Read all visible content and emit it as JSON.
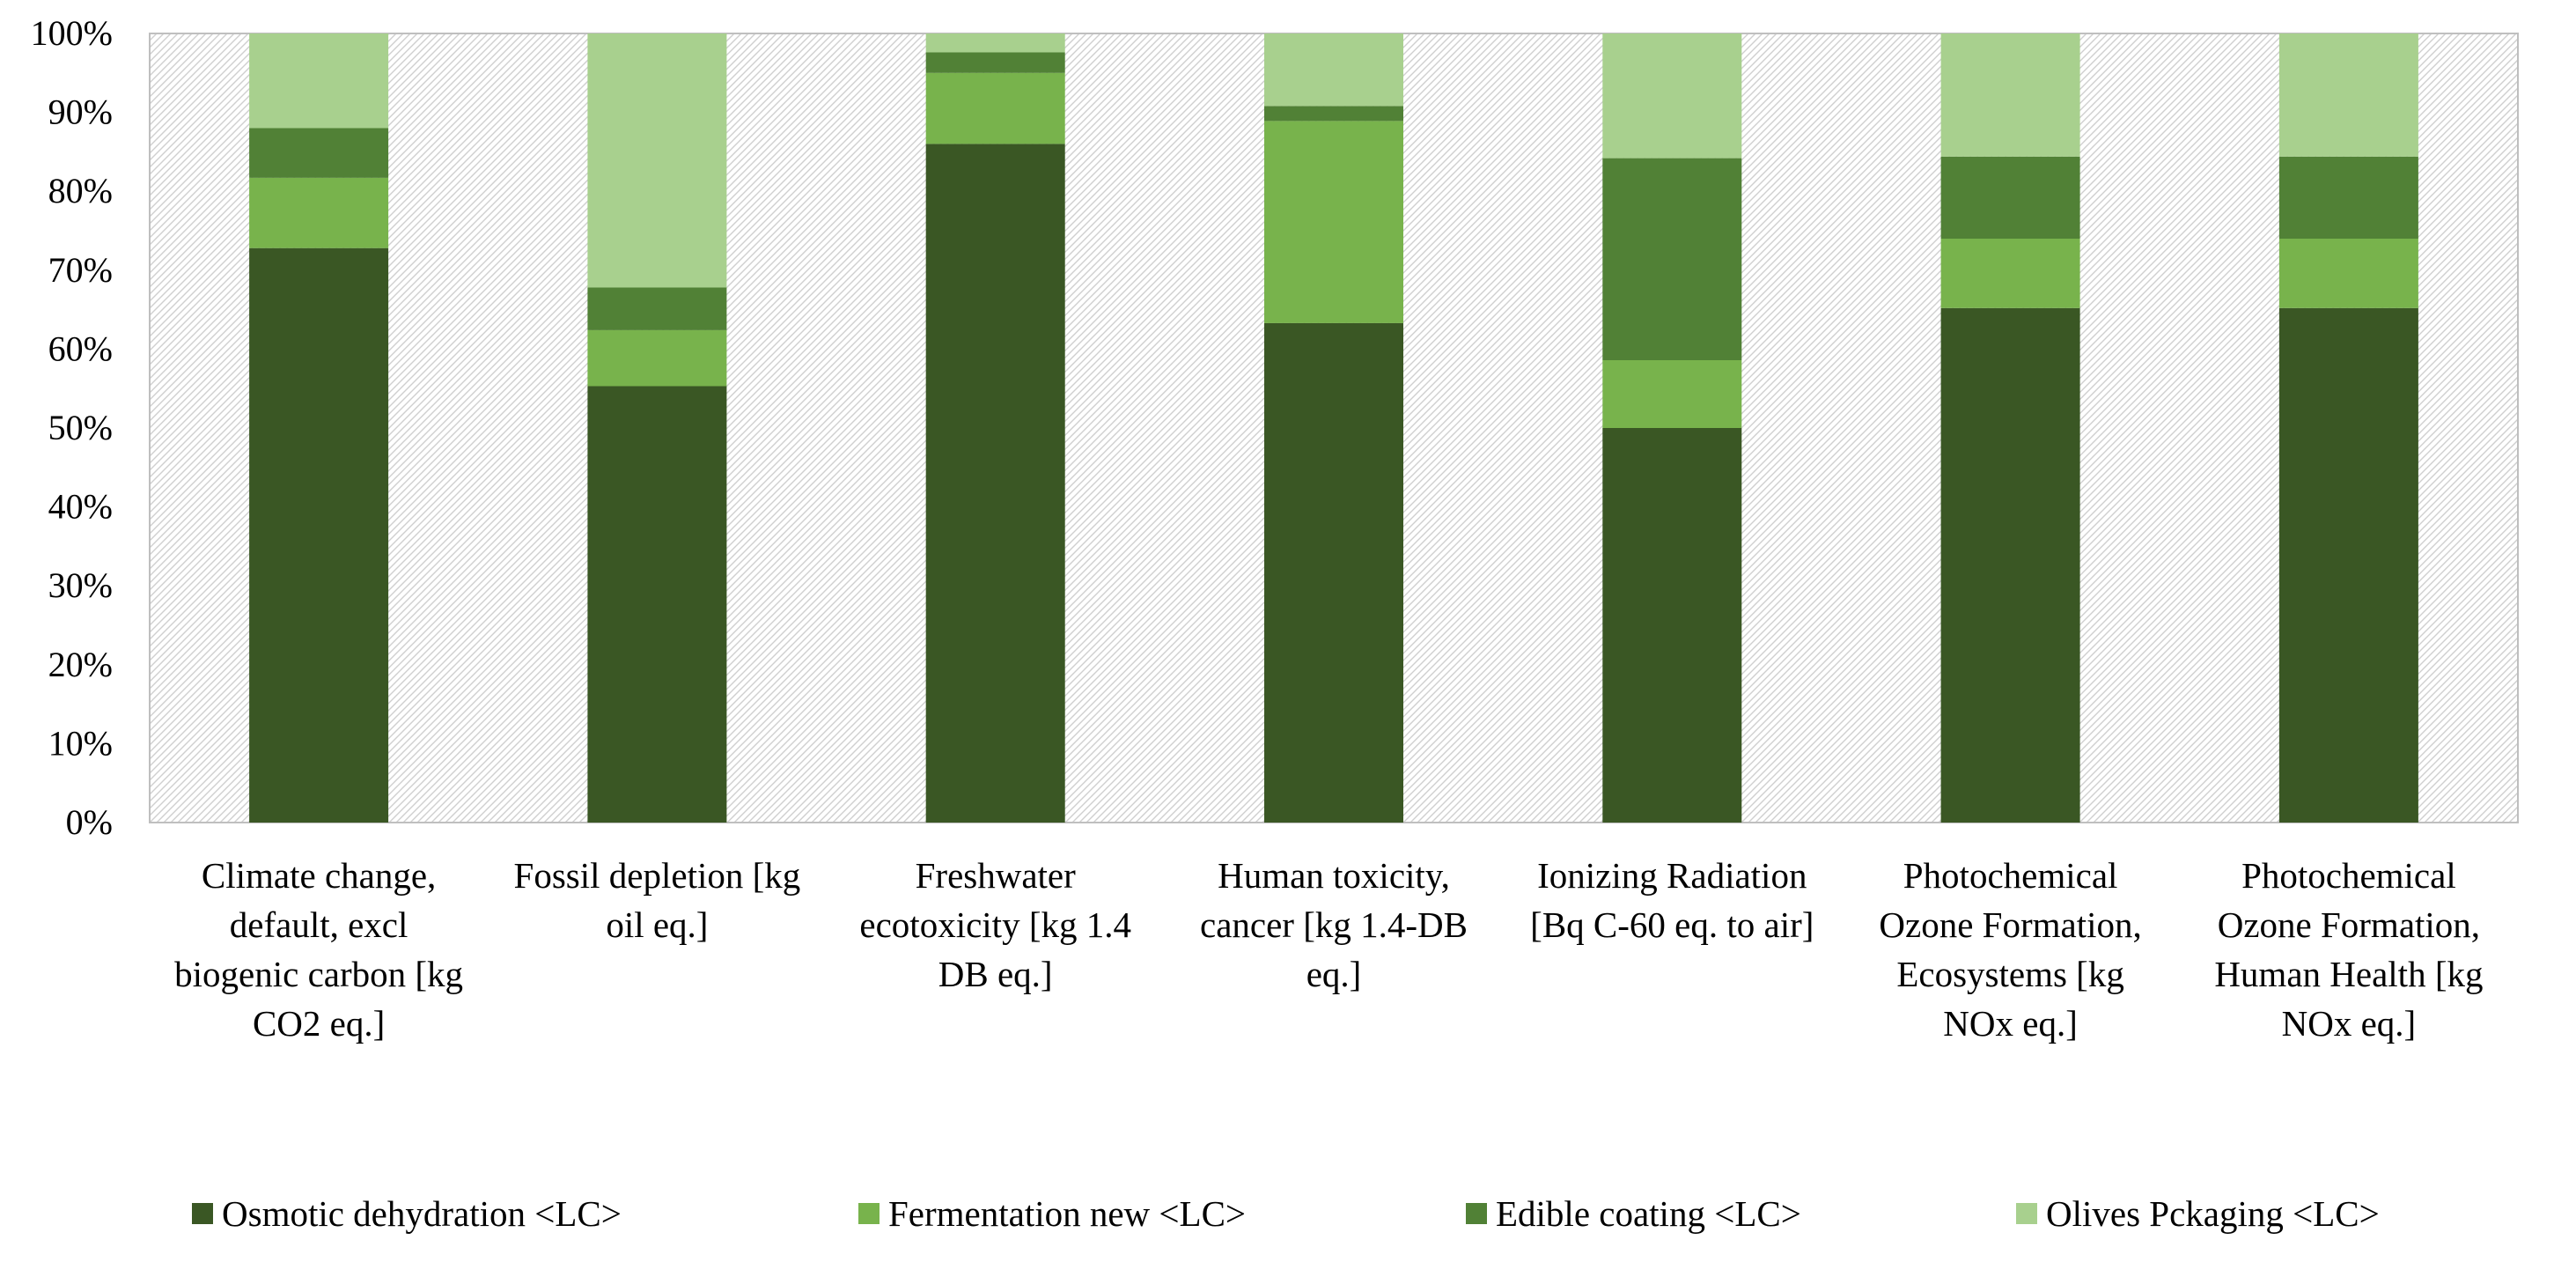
{
  "chart_data": {
    "type": "bar",
    "stacked": "percent",
    "title": "",
    "xlabel": "",
    "ylabel": "",
    "ylim": [
      0,
      100
    ],
    "yticks": [
      "0%",
      "10%",
      "20%",
      "30%",
      "40%",
      "50%",
      "60%",
      "70%",
      "80%",
      "90%",
      "100%"
    ],
    "categories": [
      [
        "Climate change,",
        "default, excl",
        "biogenic carbon [kg",
        "CO2 eq.]"
      ],
      [
        "Fossil depletion [kg",
        "oil eq.]"
      ],
      [
        "Freshwater",
        "ecotoxicity [kg 1.4",
        "DB eq.]"
      ],
      [
        "Human toxicity,",
        "cancer [kg 1.4-DB",
        "eq.]"
      ],
      [
        "Ionizing Radiation",
        "[Bq C-60 eq. to air]"
      ],
      [
        "Photochemical",
        "Ozone Formation,",
        "Ecosystems [kg",
        "NOx eq.]"
      ],
      [
        "Photochemical",
        "Ozone Formation,",
        "Human Health [kg",
        "NOx eq.]"
      ]
    ],
    "series": [
      {
        "name": "Osmotic dehydration <LC>",
        "color": "#3a5724",
        "values": [
          72.8,
          55.3,
          86.0,
          63.3,
          50.0,
          65.2,
          65.2
        ]
      },
      {
        "name": "Fermentation new <LC>",
        "color": "#78b34c",
        "values": [
          8.9,
          7.1,
          9.0,
          25.6,
          8.6,
          8.8,
          8.8
        ]
      },
      {
        "name": "Edible coating <LC>",
        "color": "#518136",
        "values": [
          6.3,
          5.4,
          2.6,
          1.9,
          25.6,
          10.4,
          10.4
        ]
      },
      {
        "name": "Olives Pckaging <LC>",
        "color": "#a8d08e",
        "values": [
          12.0,
          32.2,
          2.4,
          9.2,
          15.8,
          15.6,
          15.6
        ]
      }
    ],
    "grid": false,
    "plot_background": "diagonal-hatch",
    "legend_position": "bottom"
  }
}
